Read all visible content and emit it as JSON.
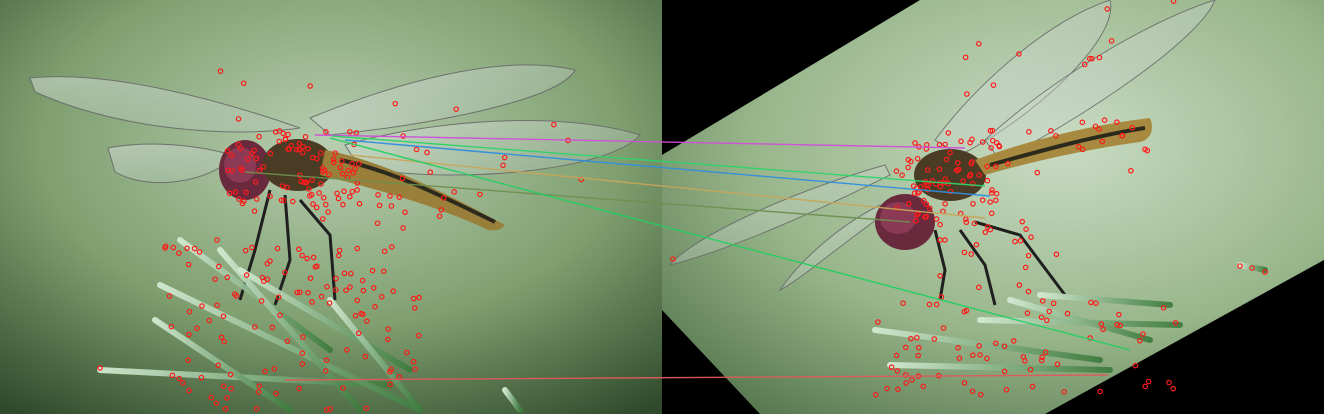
{
  "scene": {
    "description_hidden": "",
    "left_panel": {
      "subject": "dragonfly-on-pine-needles",
      "orientation": "original"
    },
    "right_panel": {
      "subject": "dragonfly-on-pine-needles",
      "orientation": "rotated-and-scaled"
    },
    "colors": {
      "background_left": "#7f9f6f",
      "background_right": "#9cb88a",
      "keypoint": "#ff1a1a",
      "black_border": "#000000"
    },
    "matches": [
      {
        "color": "#d04fd8"
      },
      {
        "color": "#2fd36b"
      },
      {
        "color": "#2f8fdf"
      },
      {
        "color": "#c7a65a"
      },
      {
        "color": "#6f8f4f"
      },
      {
        "color": "#22d060"
      },
      {
        "color": "#e05a5a"
      }
    ]
  }
}
